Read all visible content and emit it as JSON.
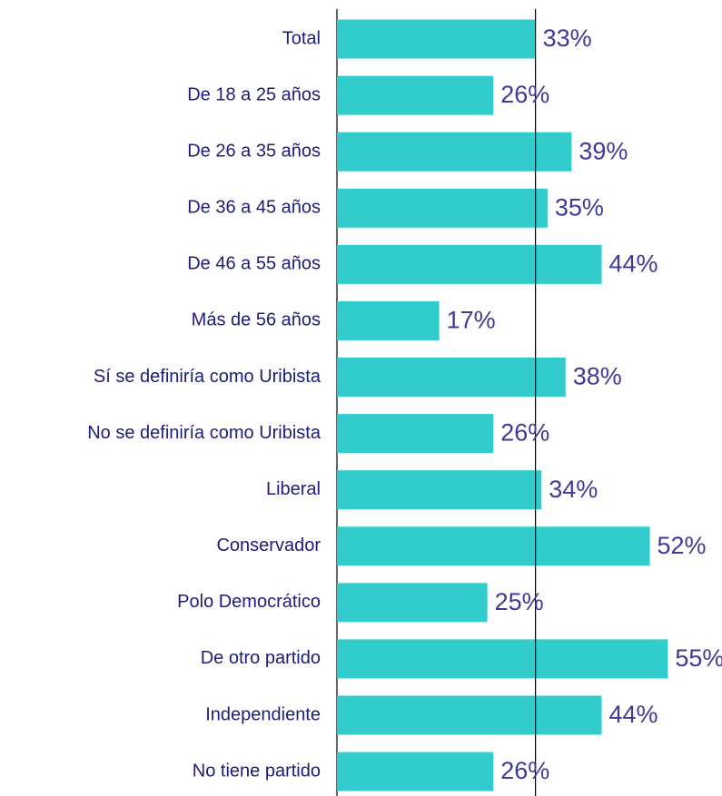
{
  "chart_data": {
    "type": "bar",
    "orientation": "horizontal",
    "categories": [
      "Total",
      "De 18 a 25 años",
      "De 26 a 35 años",
      "De 36 a 45 años",
      "De 46 a 55 años",
      "Más de 56 años",
      "Sí se definiría como Uribista",
      "No se definiría como Uribista",
      "Liberal",
      "Conservador",
      "Polo Democrático",
      "De otro partido",
      "Independiente",
      "No tiene partido"
    ],
    "values": [
      33,
      26,
      39,
      35,
      44,
      17,
      38,
      26,
      34,
      52,
      25,
      55,
      44,
      26
    ],
    "value_labels": [
      "33%",
      "26%",
      "39%",
      "35%",
      "44%",
      "17%",
      "38%",
      "26%",
      "34%",
      "52%",
      "25%",
      "55%",
      "44%",
      "26%"
    ],
    "color": "#33cccc",
    "xlim": [
      0,
      64
    ],
    "reference_line": 33
  }
}
